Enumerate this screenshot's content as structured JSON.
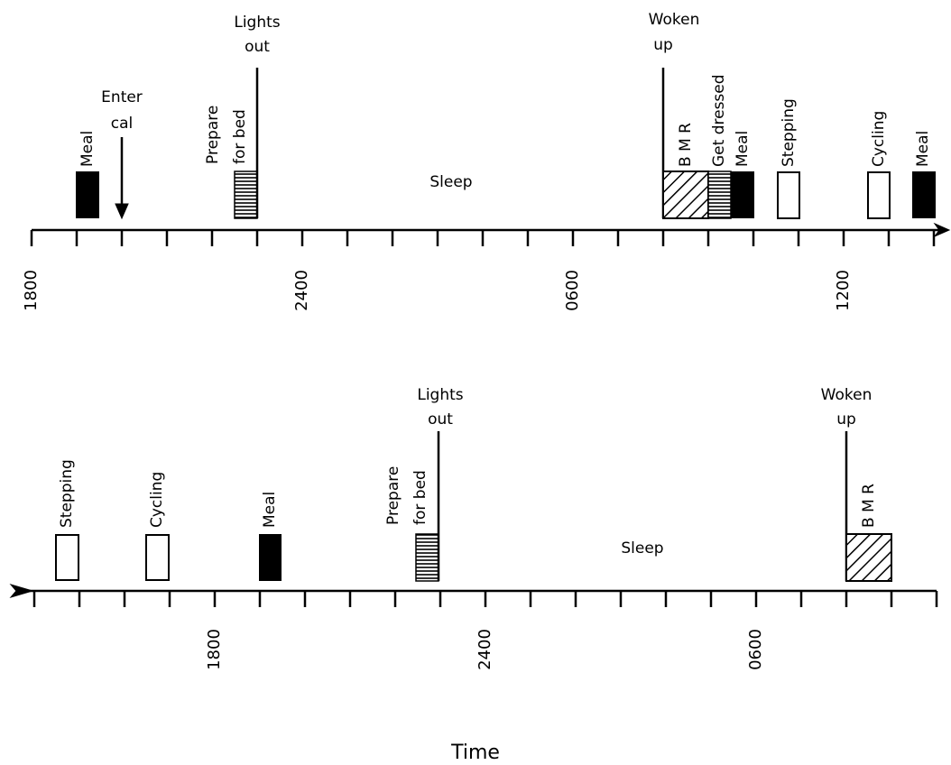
{
  "top": {
    "meal_1": "Meal",
    "enter_cal": [
      "Enter",
      "cal"
    ],
    "prepare_for_bed": [
      "Prepare",
      "for bed"
    ],
    "lights_out": [
      "Lights",
      "out"
    ],
    "sleep": "Sleep",
    "woken_up": [
      "Woken",
      "up"
    ],
    "bmr": "B M R",
    "get_dressed": "Get dressed",
    "meal_2": "Meal",
    "stepping": "Stepping",
    "cycling": "Cycling",
    "meal_3": "Meal",
    "ticks": [
      "1800",
      "2400",
      "0600",
      "1200"
    ]
  },
  "bottom": {
    "stepping": "Stepping",
    "cycling": "Cycling",
    "meal": "Meal",
    "prepare_for_bed": [
      "Prepare",
      "for bed"
    ],
    "lights_out": [
      "Lights",
      "out"
    ],
    "sleep": "Sleep",
    "woken_up": [
      "Woken",
      "up"
    ],
    "bmr": "B M R",
    "ticks": [
      "1800",
      "2400",
      "0600"
    ]
  },
  "axis_label": "Time"
}
